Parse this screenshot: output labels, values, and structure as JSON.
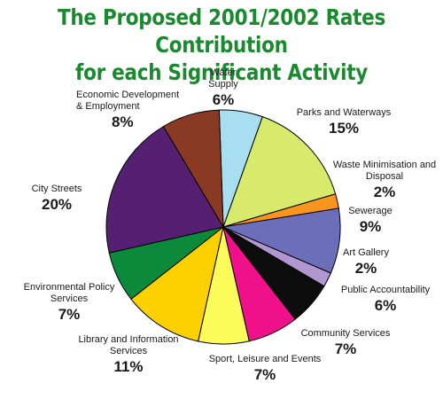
{
  "chart_data": {
    "type": "pie",
    "title_lines": [
      "The Proposed 2001/2002 Rates Contribution",
      "for each Significant Activity"
    ],
    "slices": [
      {
        "label": "Water Supply",
        "pct_label": "6%",
        "value": 6,
        "color": "#a8dff0"
      },
      {
        "label": "Parks and Waterways",
        "pct_label": "15%",
        "value": 15,
        "color": "#d7ea6c"
      },
      {
        "label": "Waste Minimisation and Disposal",
        "pct_label": "2%",
        "value": 2,
        "color": "#f7951e"
      },
      {
        "label": "Sewerage",
        "pct_label": "9%",
        "value": 9,
        "color": "#6b6fba"
      },
      {
        "label": "Art Gallery",
        "pct_label": "2%",
        "value": 2,
        "color": "#b097cf"
      },
      {
        "label": "Public Accountability",
        "pct_label": "6%",
        "value": 6,
        "color": "#0d0d0d"
      },
      {
        "label": "Community Services",
        "pct_label": "7%",
        "value": 7,
        "color": "#f0108a"
      },
      {
        "label": "Sport, Leisure and Events",
        "pct_label": "7%",
        "value": 7,
        "color": "#fbfb5a"
      },
      {
        "label": "Library and Information Services",
        "pct_label": "11%",
        "value": 11,
        "color": "#fdd000"
      },
      {
        "label": "Environmental Policy Services",
        "pct_label": "7%",
        "value": 7,
        "color": "#0a8a3a"
      },
      {
        "label": "City Streets",
        "pct_label": "20%",
        "value": 20,
        "color": "#562072"
      },
      {
        "label": "Economic Development & Employment",
        "pct_label": "8%",
        "value": 8,
        "color": "#8a3a22"
      }
    ]
  }
}
